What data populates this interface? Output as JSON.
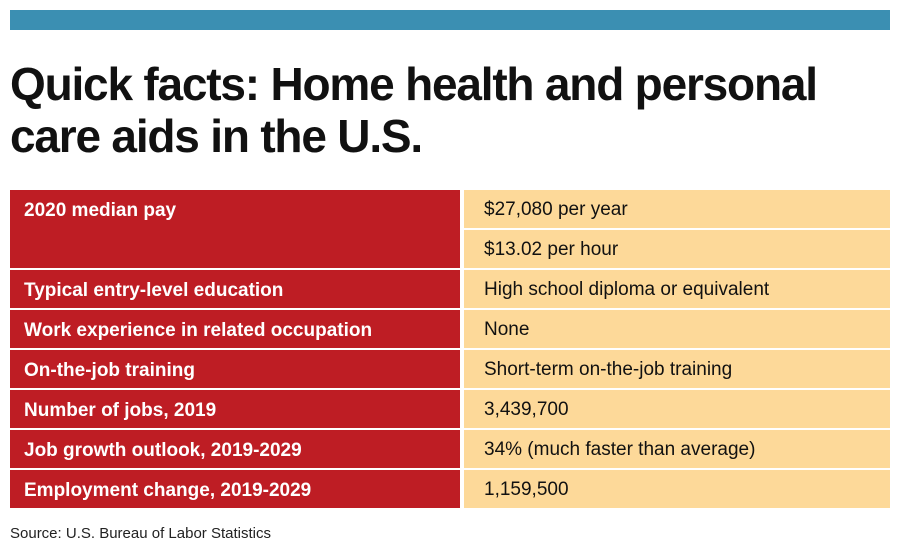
{
  "title": "Quick facts: Home health and personal care aids in the U.S.",
  "rows": [
    {
      "label": "2020 median pay",
      "values": [
        "$27,080 per year",
        "$13.02 per hour"
      ]
    },
    {
      "label": "Typical entry-level education",
      "values": [
        "High school diploma or equivalent"
      ]
    },
    {
      "label": "Work experience in related occupation",
      "values": [
        "None"
      ]
    },
    {
      "label": "On-the-job training",
      "values": [
        "Short-term on-the-job training"
      ]
    },
    {
      "label": "Number of jobs, 2019",
      "values": [
        "3,439,700"
      ]
    },
    {
      "label": "Job growth outlook, 2019-2029",
      "values": [
        "34% (much faster than average)"
      ]
    },
    {
      "label": "Employment change, 2019-2029",
      "values": [
        "1,159,500"
      ]
    }
  ],
  "source": "Source: U.S. Bureau of Labor Statistics",
  "colors": {
    "top_bar": "#3b8fb2",
    "label_bg": "#be1d24",
    "value_bg": "#fdd999"
  }
}
